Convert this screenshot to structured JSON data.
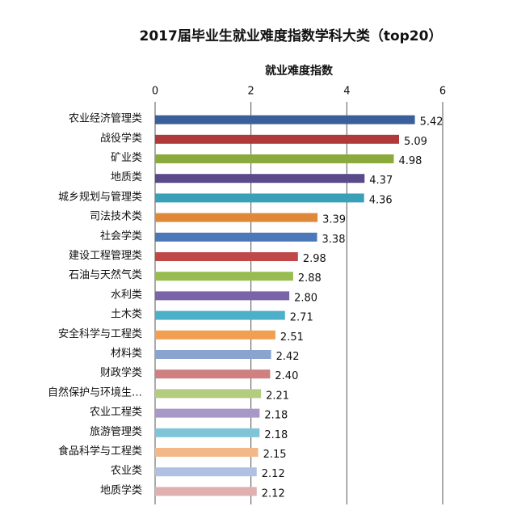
{
  "chart_data": {
    "type": "barh",
    "title": "2017届毕业生就业难度指数学科大类（top20）",
    "x_label": "就业难度指数",
    "categories": [
      "农业经济管理类",
      "战役学类",
      "矿业类",
      "地质类",
      "城乡规划与管理类",
      "司法技术类",
      "社会学类",
      "建设工程管理类",
      "石油与天然气类",
      "水利类",
      "土木类",
      "安全科学与工程类",
      "材料类",
      "财政学类",
      "自然保护与环境生…",
      "农业工程类",
      "旅游管理类",
      "食品科学与工程类",
      "农业类",
      "地质学类"
    ],
    "values": [
      5.42,
      5.09,
      4.98,
      4.37,
      4.36,
      3.39,
      3.38,
      2.98,
      2.88,
      2.8,
      2.71,
      2.51,
      2.42,
      2.4,
      2.21,
      2.18,
      2.18,
      2.15,
      2.12,
      2.12
    ],
    "value_labels": [
      "5.42",
      "5.09",
      "4.98",
      "4.37",
      "4.36",
      "3.39",
      "3.38",
      "2.98",
      "2.88",
      "2.80",
      "2.71",
      "2.51",
      "2.42",
      "2.40",
      "2.21",
      "2.18",
      "2.18",
      "2.15",
      "2.12",
      "2.12"
    ],
    "colors": [
      "#3a5f9a",
      "#b03a3a",
      "#8aab3c",
      "#5a4a8a",
      "#3aa0b8",
      "#e0883a",
      "#4a78b8",
      "#c04848",
      "#98bc50",
      "#7a64a8",
      "#4cb0c8",
      "#f0a050",
      "#8aa4d0",
      "#d08080",
      "#b4cc80",
      "#a898c8",
      "#80c4d8",
      "#f4b888",
      "#b0c0e0",
      "#e0b0b0"
    ],
    "xlim": [
      0,
      6
    ],
    "xticks": [
      0,
      2,
      4,
      6
    ],
    "grid": true
  }
}
